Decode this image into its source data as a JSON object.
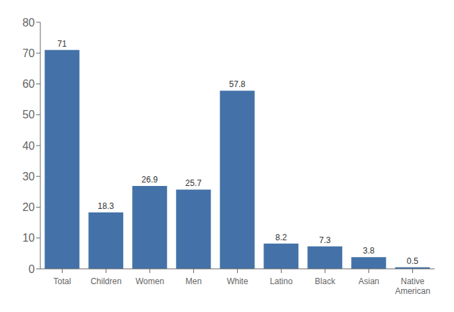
{
  "chart_data": {
    "type": "bar",
    "categories": [
      "Total",
      "Children",
      "Women",
      "Men",
      "White",
      "Latino",
      "Black",
      "Asian",
      "Native\nAmerican"
    ],
    "values": [
      71,
      18.3,
      26.9,
      25.7,
      57.8,
      8.2,
      7.3,
      3.8,
      0.5
    ],
    "color": "#4472a8",
    "ylim": [
      0,
      80
    ],
    "yticks": [
      0,
      10,
      20,
      30,
      40,
      50,
      60,
      70,
      80
    ],
    "grid": false,
    "data_labels": true
  }
}
